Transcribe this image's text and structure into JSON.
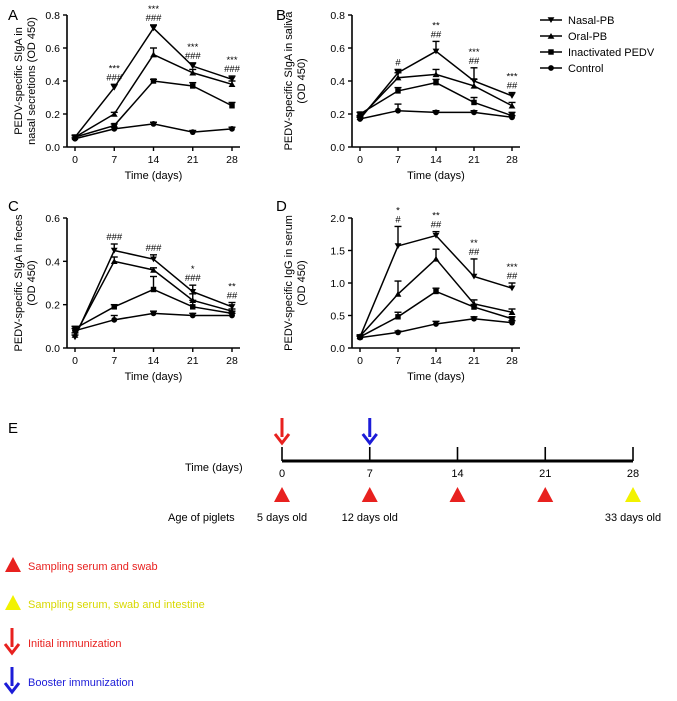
{
  "chart_data": [
    {
      "panel": "A",
      "type": "line",
      "ylabel_lines": [
        "PEDV-specific SIgA in",
        "nasal secretions (OD 450)"
      ],
      "xlabel": "Time (days)",
      "x": [
        0,
        7,
        14,
        21,
        28
      ],
      "ylim": [
        0,
        0.8
      ],
      "yticks": [
        "0.0",
        "0.2",
        "0.4",
        "0.6",
        "0.8"
      ],
      "series": [
        {
          "name": "Nasal-PB",
          "marker": "triangle-down",
          "values": [
            0.06,
            0.36,
            0.72,
            0.49,
            0.41
          ],
          "err": [
            0.01,
            0.02,
            0.02,
            0.02,
            0.02
          ]
        },
        {
          "name": "Oral-PB",
          "marker": "triangle-up",
          "values": [
            0.06,
            0.2,
            0.56,
            0.45,
            0.38
          ],
          "err": [
            0.01,
            0.01,
            0.04,
            0.02,
            0.02
          ]
        },
        {
          "name": "Inactivated PEDV",
          "marker": "square",
          "values": [
            0.06,
            0.13,
            0.4,
            0.37,
            0.25
          ],
          "err": [
            0.01,
            0.01,
            0.01,
            0.02,
            0.02
          ]
        },
        {
          "name": "Control",
          "marker": "circle",
          "values": [
            0.05,
            0.11,
            0.14,
            0.09,
            0.11
          ],
          "err": [
            0.005,
            0.01,
            0.01,
            0.01,
            0.01
          ]
        }
      ],
      "annotations": [
        {
          "x": 7,
          "lines": [
            "***",
            "###"
          ]
        },
        {
          "x": 14,
          "lines": [
            "***",
            "###"
          ]
        },
        {
          "x": 21,
          "lines": [
            "***",
            "###"
          ]
        },
        {
          "x": 28,
          "lines": [
            "***",
            "###"
          ]
        }
      ]
    },
    {
      "panel": "B",
      "type": "line",
      "ylabel_lines": [
        "PEDV-specific SIgA in saliva",
        "(OD 450)"
      ],
      "xlabel": "Time (days)",
      "x": [
        0,
        7,
        14,
        21,
        28
      ],
      "ylim": [
        0,
        0.8
      ],
      "yticks": [
        "0.0",
        "0.2",
        "0.4",
        "0.6",
        "0.8"
      ],
      "series": [
        {
          "name": "Nasal-PB",
          "marker": "triangle-down",
          "values": [
            0.17,
            0.45,
            0.58,
            0.4,
            0.31
          ],
          "err": [
            0.01,
            0.02,
            0.06,
            0.08,
            0.02
          ]
        },
        {
          "name": "Oral-PB",
          "marker": "triangle-up",
          "values": [
            0.18,
            0.42,
            0.44,
            0.37,
            0.25
          ],
          "err": [
            0.01,
            0.03,
            0.03,
            0.04,
            0.02
          ]
        },
        {
          "name": "Inactivated PEDV",
          "marker": "square",
          "values": [
            0.2,
            0.34,
            0.39,
            0.27,
            0.19
          ],
          "err": [
            0.01,
            0.02,
            0.02,
            0.03,
            0.02
          ]
        },
        {
          "name": "Control",
          "marker": "circle",
          "values": [
            0.17,
            0.22,
            0.21,
            0.21,
            0.18
          ],
          "err": [
            0.01,
            0.04,
            0.01,
            0.01,
            0.01
          ]
        }
      ],
      "annotations": [
        {
          "x": 7,
          "lines": [
            "#"
          ]
        },
        {
          "x": 14,
          "lines": [
            "**",
            "##"
          ]
        },
        {
          "x": 21,
          "lines": [
            "***",
            "##"
          ]
        },
        {
          "x": 28,
          "lines": [
            "***",
            "##"
          ]
        }
      ]
    },
    {
      "panel": "C",
      "type": "line",
      "ylabel_lines": [
        "PEDV-specific SIgA in feces",
        "(OD 450)"
      ],
      "xlabel": "Time (days)",
      "x": [
        0,
        7,
        14,
        21,
        28
      ],
      "ylim": [
        0,
        0.6
      ],
      "yticks": [
        "0.0",
        "0.2",
        "0.4",
        "0.6"
      ],
      "series": [
        {
          "name": "Nasal-PB",
          "marker": "triangle-down",
          "values": [
            0.05,
            0.45,
            0.41,
            0.26,
            0.19
          ],
          "err": [
            0.01,
            0.03,
            0.02,
            0.03,
            0.02
          ]
        },
        {
          "name": "Oral-PB",
          "marker": "triangle-up",
          "values": [
            0.06,
            0.4,
            0.36,
            0.22,
            0.17
          ],
          "err": [
            0.01,
            0.02,
            0.01,
            0.03,
            0.01
          ]
        },
        {
          "name": "Inactivated PEDV",
          "marker": "square",
          "values": [
            0.09,
            0.19,
            0.27,
            0.19,
            0.16
          ],
          "err": [
            0.01,
            0.01,
            0.06,
            0.03,
            0.01
          ]
        },
        {
          "name": "Control",
          "marker": "circle",
          "values": [
            0.08,
            0.13,
            0.16,
            0.15,
            0.15
          ],
          "err": [
            0.01,
            0.02,
            0.01,
            0.01,
            0.01
          ]
        }
      ],
      "annotations": [
        {
          "x": 7,
          "lines": [
            "###"
          ]
        },
        {
          "x": 14,
          "lines": [
            "###"
          ]
        },
        {
          "x": 21,
          "lines": [
            "*",
            "###"
          ]
        },
        {
          "x": 28,
          "lines": [
            "**",
            "##"
          ]
        }
      ]
    },
    {
      "panel": "D",
      "type": "line",
      "ylabel_lines": [
        "PEDV-specific IgG in serum",
        "(OD 450)"
      ],
      "xlabel": "Time (days)",
      "x": [
        0,
        7,
        14,
        21,
        28
      ],
      "ylim": [
        0,
        2.0
      ],
      "yticks": [
        "0.0",
        "0.5",
        "1.0",
        "1.5",
        "2.0"
      ],
      "series": [
        {
          "name": "Nasal-PB",
          "marker": "triangle-down",
          "values": [
            0.17,
            1.57,
            1.73,
            1.1,
            0.92
          ],
          "err": [
            0.02,
            0.3,
            0.06,
            0.27,
            0.08
          ]
        },
        {
          "name": "Oral-PB",
          "marker": "triangle-up",
          "values": [
            0.18,
            0.83,
            1.37,
            0.68,
            0.55
          ],
          "err": [
            0.02,
            0.2,
            0.15,
            0.06,
            0.05
          ]
        },
        {
          "name": "Inactivated PEDV",
          "marker": "square",
          "values": [
            0.17,
            0.48,
            0.87,
            0.63,
            0.45
          ],
          "err": [
            0.02,
            0.07,
            0.05,
            0.04,
            0.03
          ]
        },
        {
          "name": "Control",
          "marker": "circle",
          "values": [
            0.16,
            0.24,
            0.37,
            0.45,
            0.39
          ],
          "err": [
            0.02,
            0.02,
            0.04,
            0.03,
            0.03
          ]
        }
      ],
      "annotations": [
        {
          "x": 7,
          "lines": [
            "*",
            "#"
          ]
        },
        {
          "x": 14,
          "lines": [
            "**",
            "##"
          ]
        },
        {
          "x": 21,
          "lines": [
            "**",
            "##"
          ]
        },
        {
          "x": 28,
          "lines": [
            "***",
            "##"
          ]
        }
      ]
    }
  ],
  "panel_labels": [
    "A",
    "B",
    "C",
    "D",
    "E"
  ],
  "legend": [
    {
      "label": "Nasal-PB",
      "marker": "triangle-down"
    },
    {
      "label": "Oral-PB",
      "marker": "triangle-up"
    },
    {
      "label": "Inactivated PEDV",
      "marker": "square"
    },
    {
      "label": "Control",
      "marker": "circle"
    }
  ],
  "timeline": {
    "time_label": "Time (days)",
    "age_label": "Age of piglets",
    "ticks": [
      "0",
      "7",
      "14",
      "21",
      "28"
    ],
    "ages": [
      {
        "day": "0",
        "text": "5 days old"
      },
      {
        "day": "7",
        "text": "12 days old"
      },
      {
        "day": "28",
        "text": "33 days old"
      }
    ],
    "sample_days": [
      {
        "day": "0",
        "type": "serum_swab"
      },
      {
        "day": "7",
        "type": "serum_swab"
      },
      {
        "day": "14",
        "type": "serum_swab"
      },
      {
        "day": "21",
        "type": "serum_swab"
      },
      {
        "day": "28",
        "type": "serum_swab_intestine"
      }
    ],
    "immunizations": [
      {
        "day": "0",
        "type": "initial"
      },
      {
        "day": "7",
        "type": "booster"
      }
    ]
  },
  "key": [
    {
      "symbol": "red-triangle",
      "text": "Sampling serum and swab",
      "color": "#e8211f"
    },
    {
      "symbol": "yellow-triangle",
      "text": "Sampling serum, swab and intestine",
      "color": "#d8d800"
    },
    {
      "symbol": "red-arrow",
      "text": "Initial immunization",
      "color": "#e8211f"
    },
    {
      "symbol": "blue-arrow",
      "text": "Booster immunization",
      "color": "#1c1cd8"
    }
  ],
  "colors": {
    "red": "#e8211f",
    "yellow": "#f2f200",
    "blue": "#1c1cd8",
    "ink": "#000000"
  }
}
